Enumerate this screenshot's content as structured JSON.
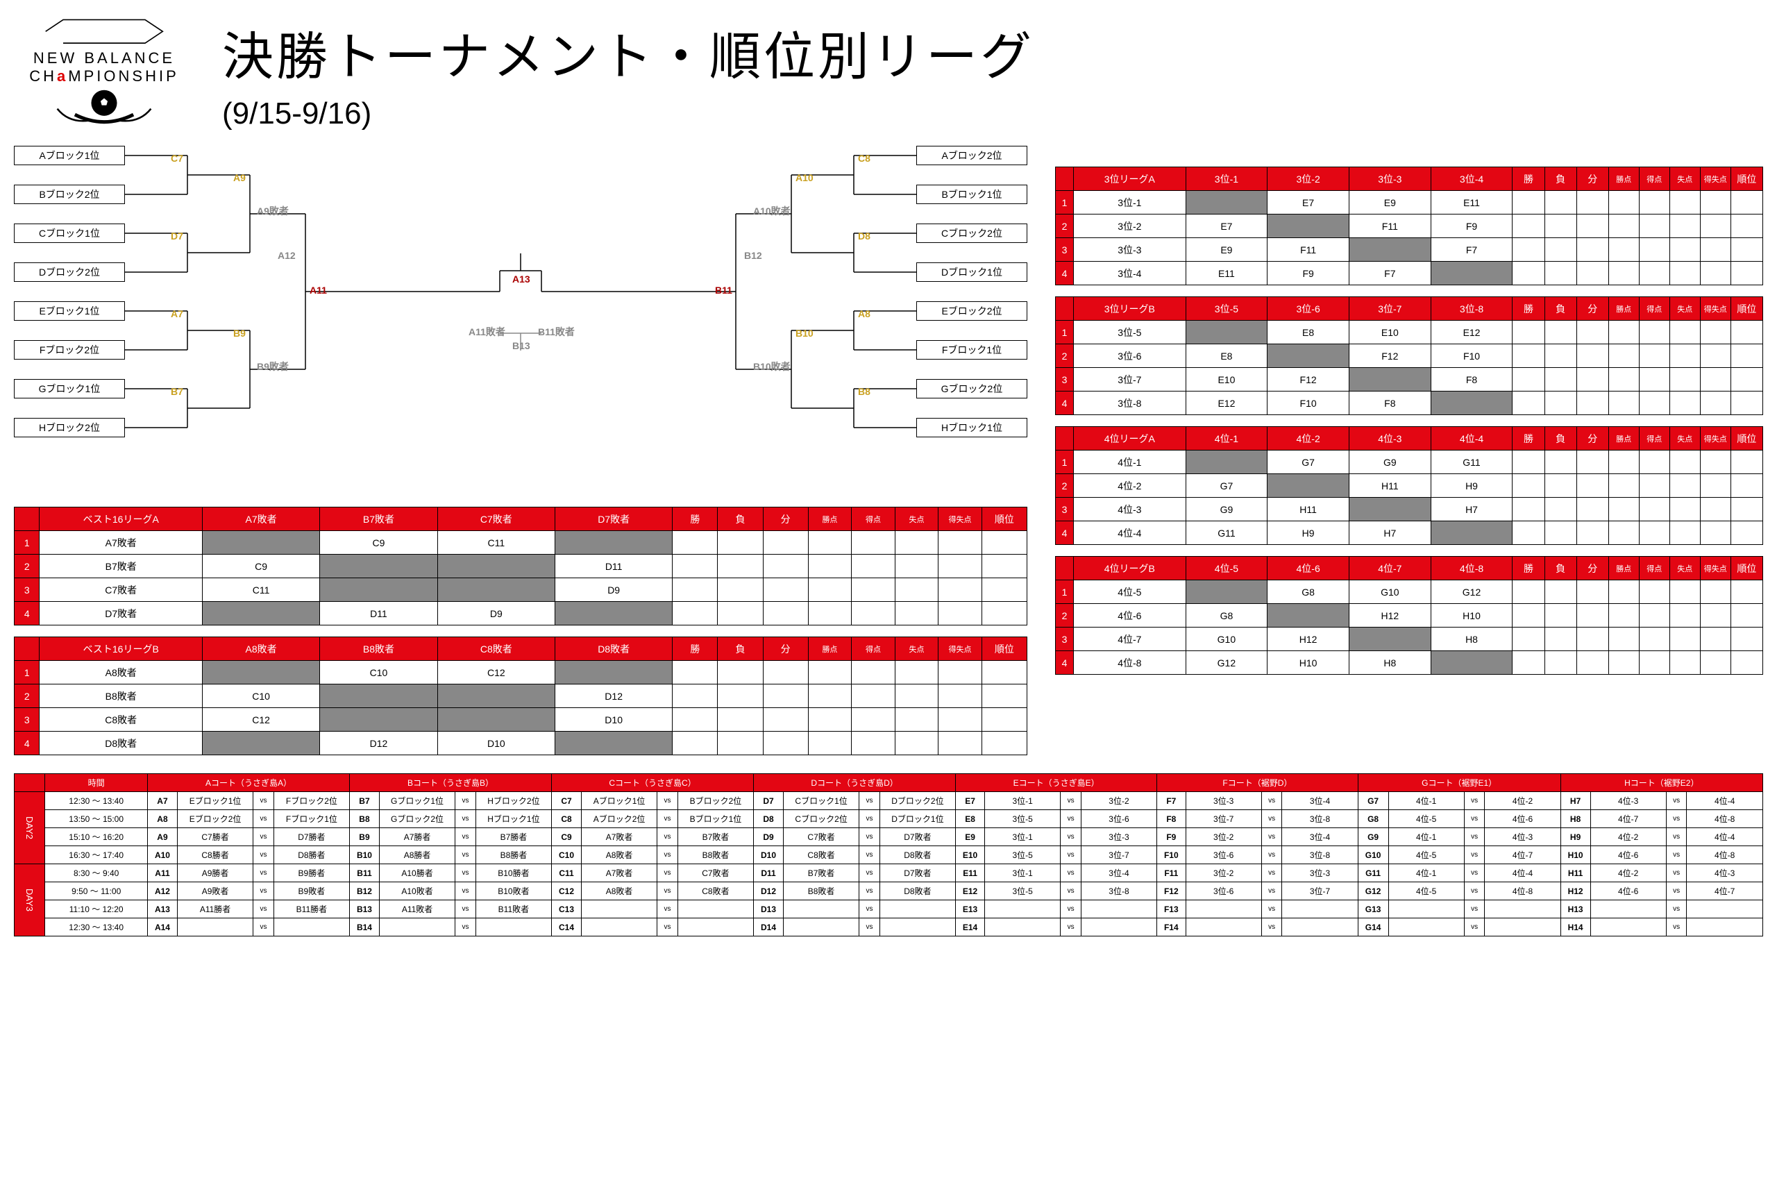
{
  "logo": {
    "line1": "NEW BALANCE",
    "line2a": "CH",
    "line2b": "a",
    "line2c": "MPIONSHIP"
  },
  "title": "決勝トーナメント・順位別リーグ",
  "dates": "(9/15-9/16)",
  "bracket": {
    "left_teams": [
      "Aブロック1位",
      "Bブロック2位",
      "Cブロック1位",
      "Dブロック2位",
      "Eブロック1位",
      "Fブロック2位",
      "Gブロック1位",
      "Hブロック2位"
    ],
    "right_teams": [
      "Aブロック2位",
      "Bブロック1位",
      "Cブロック2位",
      "Dブロック1位",
      "Eブロック2位",
      "Fブロック1位",
      "Gブロック2位",
      "Hブロック1位"
    ],
    "labels_left_r1": [
      "C7",
      "D7",
      "A7",
      "B7"
    ],
    "labels_left_r2": [
      "A9",
      "B9"
    ],
    "labels_right_r1": [
      "C8",
      "D8",
      "A8",
      "B8"
    ],
    "labels_right_r2": [
      "A10",
      "B10"
    ],
    "semi_left": "A11",
    "semi_right": "B11",
    "final": "A13",
    "a12": "A12",
    "b12": "B12",
    "b13": "B13",
    "loser_labels": [
      "A9敗者",
      "B9敗者",
      "A10敗者",
      "B10敗者",
      "A11敗者",
      "B11敗者"
    ]
  },
  "best16A": {
    "title": "ベスト16リーグA",
    "cols": [
      "A7敗者",
      "B7敗者",
      "C7敗者",
      "D7敗者"
    ],
    "rows": [
      "A7敗者",
      "B7敗者",
      "C7敗者",
      "D7敗者"
    ],
    "cells": [
      [
        "",
        "C9",
        "C11",
        ""
      ],
      [
        "C9",
        "",
        "",
        "D11"
      ],
      [
        "C11",
        "",
        "",
        "D9"
      ],
      [
        "",
        "D11",
        "D9",
        ""
      ]
    ],
    "stat_cols": [
      "勝",
      "負",
      "分",
      "勝点",
      "得点",
      "失点",
      "得失点",
      "順位"
    ]
  },
  "best16B": {
    "title": "ベスト16リーグB",
    "cols": [
      "A8敗者",
      "B8敗者",
      "C8敗者",
      "D8敗者"
    ],
    "rows": [
      "A8敗者",
      "B8敗者",
      "C8敗者",
      "D8敗者"
    ],
    "cells": [
      [
        "",
        "C10",
        "C12",
        ""
      ],
      [
        "C10",
        "",
        "",
        "D12"
      ],
      [
        "C12",
        "",
        "",
        "D10"
      ],
      [
        "",
        "D12",
        "D10",
        ""
      ]
    ],
    "stat_cols": [
      "勝",
      "負",
      "分",
      "勝点",
      "得点",
      "失点",
      "得失点",
      "順位"
    ]
  },
  "league3A": {
    "title": "3位リーグA",
    "cols": [
      "3位-1",
      "3位-2",
      "3位-3",
      "3位-4"
    ],
    "rows": [
      "3位-1",
      "3位-2",
      "3位-3",
      "3位-4"
    ],
    "cells": [
      [
        "",
        "E7",
        "E9",
        "E11"
      ],
      [
        "E7",
        "",
        "F11",
        "F9"
      ],
      [
        "E9",
        "F11",
        "",
        "F7"
      ],
      [
        "E11",
        "F9",
        "F7",
        ""
      ]
    ],
    "stat_cols": [
      "勝",
      "負",
      "分",
      "勝点",
      "得点",
      "失点",
      "得失点",
      "順位"
    ]
  },
  "league3B": {
    "title": "3位リーグB",
    "cols": [
      "3位-5",
      "3位-6",
      "3位-7",
      "3位-8"
    ],
    "rows": [
      "3位-5",
      "3位-6",
      "3位-7",
      "3位-8"
    ],
    "cells": [
      [
        "",
        "E8",
        "E10",
        "E12"
      ],
      [
        "E8",
        "",
        "F12",
        "F10"
      ],
      [
        "E10",
        "F12",
        "",
        "F8"
      ],
      [
        "E12",
        "F10",
        "F8",
        ""
      ]
    ],
    "stat_cols": [
      "勝",
      "負",
      "分",
      "勝点",
      "得点",
      "失点",
      "得失点",
      "順位"
    ]
  },
  "league4A": {
    "title": "4位リーグA",
    "cols": [
      "4位-1",
      "4位-2",
      "4位-3",
      "4位-4"
    ],
    "rows": [
      "4位-1",
      "4位-2",
      "4位-3",
      "4位-4"
    ],
    "cells": [
      [
        "",
        "G7",
        "G9",
        "G11"
      ],
      [
        "G7",
        "",
        "H11",
        "H9"
      ],
      [
        "G9",
        "H11",
        "",
        "H7"
      ],
      [
        "G11",
        "H9",
        "H7",
        ""
      ]
    ],
    "stat_cols": [
      "勝",
      "負",
      "分",
      "勝点",
      "得点",
      "失点",
      "得失点",
      "順位"
    ]
  },
  "league4B": {
    "title": "4位リーグB",
    "cols": [
      "4位-5",
      "4位-6",
      "4位-7",
      "4位-8"
    ],
    "rows": [
      "4位-5",
      "4位-6",
      "4位-7",
      "4位-8"
    ],
    "cells": [
      [
        "",
        "G8",
        "G10",
        "G12"
      ],
      [
        "G8",
        "",
        "H12",
        "H10"
      ],
      [
        "G10",
        "H12",
        "",
        "H8"
      ],
      [
        "G12",
        "H10",
        "H8",
        ""
      ]
    ],
    "stat_cols": [
      "勝",
      "負",
      "分",
      "勝点",
      "得点",
      "失点",
      "得失点",
      "順位"
    ]
  },
  "schedule": {
    "time_header": "時間",
    "courts": [
      "Aコート（うさぎ島A）",
      "Bコート（うさぎ島B）",
      "Cコート（うさぎ島C）",
      "Dコート（うさぎ島D）",
      "Eコート（うさぎ島E）",
      "Fコート（裾野D）",
      "Gコート（裾野E1）",
      "Hコート（裾野E2）"
    ],
    "days": [
      {
        "label": "DAY2",
        "rows": [
          {
            "time": "12:30 ～ 13:40",
            "m": [
              {
                "c": "A7",
                "h": "Eブロック1位",
                "a": "Fブロック2位"
              },
              {
                "c": "B7",
                "h": "Gブロック1位",
                "a": "Hブロック2位"
              },
              {
                "c": "C7",
                "h": "Aブロック1位",
                "a": "Bブロック2位"
              },
              {
                "c": "D7",
                "h": "Cブロック1位",
                "a": "Dブロック2位"
              },
              {
                "c": "E7",
                "h": "3位-1",
                "a": "3位-2"
              },
              {
                "c": "F7",
                "h": "3位-3",
                "a": "3位-4"
              },
              {
                "c": "G7",
                "h": "4位-1",
                "a": "4位-2"
              },
              {
                "c": "H7",
                "h": "4位-3",
                "a": "4位-4"
              }
            ]
          },
          {
            "time": "13:50 ～ 15:00",
            "m": [
              {
                "c": "A8",
                "h": "Eブロック2位",
                "a": "Fブロック1位"
              },
              {
                "c": "B8",
                "h": "Gブロック2位",
                "a": "Hブロック1位"
              },
              {
                "c": "C8",
                "h": "Aブロック2位",
                "a": "Bブロック1位"
              },
              {
                "c": "D8",
                "h": "Cブロック2位",
                "a": "Dブロック1位"
              },
              {
                "c": "E8",
                "h": "3位-5",
                "a": "3位-6"
              },
              {
                "c": "F8",
                "h": "3位-7",
                "a": "3位-8"
              },
              {
                "c": "G8",
                "h": "4位-5",
                "a": "4位-6"
              },
              {
                "c": "H8",
                "h": "4位-7",
                "a": "4位-8"
              }
            ]
          },
          {
            "time": "15:10 ～ 16:20",
            "m": [
              {
                "c": "A9",
                "h": "C7勝者",
                "a": "D7勝者"
              },
              {
                "c": "B9",
                "h": "A7勝者",
                "a": "B7勝者"
              },
              {
                "c": "C9",
                "h": "A7敗者",
                "a": "B7敗者"
              },
              {
                "c": "D9",
                "h": "C7敗者",
                "a": "D7敗者"
              },
              {
                "c": "E9",
                "h": "3位-1",
                "a": "3位-3"
              },
              {
                "c": "F9",
                "h": "3位-2",
                "a": "3位-4"
              },
              {
                "c": "G9",
                "h": "4位-1",
                "a": "4位-3"
              },
              {
                "c": "H9",
                "h": "4位-2",
                "a": "4位-4"
              }
            ]
          },
          {
            "time": "16:30 ～ 17:40",
            "m": [
              {
                "c": "A10",
                "h": "C8勝者",
                "a": "D8勝者"
              },
              {
                "c": "B10",
                "h": "A8勝者",
                "a": "B8勝者"
              },
              {
                "c": "C10",
                "h": "A8敗者",
                "a": "B8敗者"
              },
              {
                "c": "D10",
                "h": "C8敗者",
                "a": "D8敗者"
              },
              {
                "c": "E10",
                "h": "3位-5",
                "a": "3位-7"
              },
              {
                "c": "F10",
                "h": "3位-6",
                "a": "3位-8"
              },
              {
                "c": "G10",
                "h": "4位-5",
                "a": "4位-7"
              },
              {
                "c": "H10",
                "h": "4位-6",
                "a": "4位-8"
              }
            ]
          }
        ]
      },
      {
        "label": "DAY3",
        "rows": [
          {
            "time": "8:30 ～ 9:40",
            "m": [
              {
                "c": "A11",
                "h": "A9勝者",
                "a": "B9勝者"
              },
              {
                "c": "B11",
                "h": "A10勝者",
                "a": "B10勝者"
              },
              {
                "c": "C11",
                "h": "A7敗者",
                "a": "C7敗者"
              },
              {
                "c": "D11",
                "h": "B7敗者",
                "a": "D7敗者"
              },
              {
                "c": "E11",
                "h": "3位-1",
                "a": "3位-4"
              },
              {
                "c": "F11",
                "h": "3位-2",
                "a": "3位-3"
              },
              {
                "c": "G11",
                "h": "4位-1",
                "a": "4位-4"
              },
              {
                "c": "H11",
                "h": "4位-2",
                "a": "4位-3"
              }
            ]
          },
          {
            "time": "9:50 ～ 11:00",
            "m": [
              {
                "c": "A12",
                "h": "A9敗者",
                "a": "B9敗者"
              },
              {
                "c": "B12",
                "h": "A10敗者",
                "a": "B10敗者"
              },
              {
                "c": "C12",
                "h": "A8敗者",
                "a": "C8敗者"
              },
              {
                "c": "D12",
                "h": "B8敗者",
                "a": "D8敗者"
              },
              {
                "c": "E12",
                "h": "3位-5",
                "a": "3位-8"
              },
              {
                "c": "F12",
                "h": "3位-6",
                "a": "3位-7"
              },
              {
                "c": "G12",
                "h": "4位-5",
                "a": "4位-8"
              },
              {
                "c": "H12",
                "h": "4位-6",
                "a": "4位-7"
              }
            ]
          },
          {
            "time": "11:10 ～ 12:20",
            "m": [
              {
                "c": "A13",
                "h": "A11勝者",
                "a": "B11勝者"
              },
              {
                "c": "B13",
                "h": "A11敗者",
                "a": "B11敗者"
              },
              {
                "c": "C13",
                "h": "",
                "a": ""
              },
              {
                "c": "D13",
                "h": "",
                "a": ""
              },
              {
                "c": "E13",
                "h": "",
                "a": ""
              },
              {
                "c": "F13",
                "h": "",
                "a": ""
              },
              {
                "c": "G13",
                "h": "",
                "a": ""
              },
              {
                "c": "H13",
                "h": "",
                "a": ""
              }
            ]
          },
          {
            "time": "12:30 ～ 13:40",
            "m": [
              {
                "c": "A14",
                "h": "",
                "a": ""
              },
              {
                "c": "B14",
                "h": "",
                "a": ""
              },
              {
                "c": "C14",
                "h": "",
                "a": ""
              },
              {
                "c": "D14",
                "h": "",
                "a": ""
              },
              {
                "c": "E14",
                "h": "",
                "a": ""
              },
              {
                "c": "F14",
                "h": "",
                "a": ""
              },
              {
                "c": "G14",
                "h": "",
                "a": ""
              },
              {
                "c": "H14",
                "h": "",
                "a": ""
              }
            ]
          }
        ]
      }
    ]
  },
  "colors": {
    "red": "#e30613",
    "gold": "#c9a020",
    "darkred": "#a00000",
    "gray": "#888888",
    "diag": "#888888"
  }
}
